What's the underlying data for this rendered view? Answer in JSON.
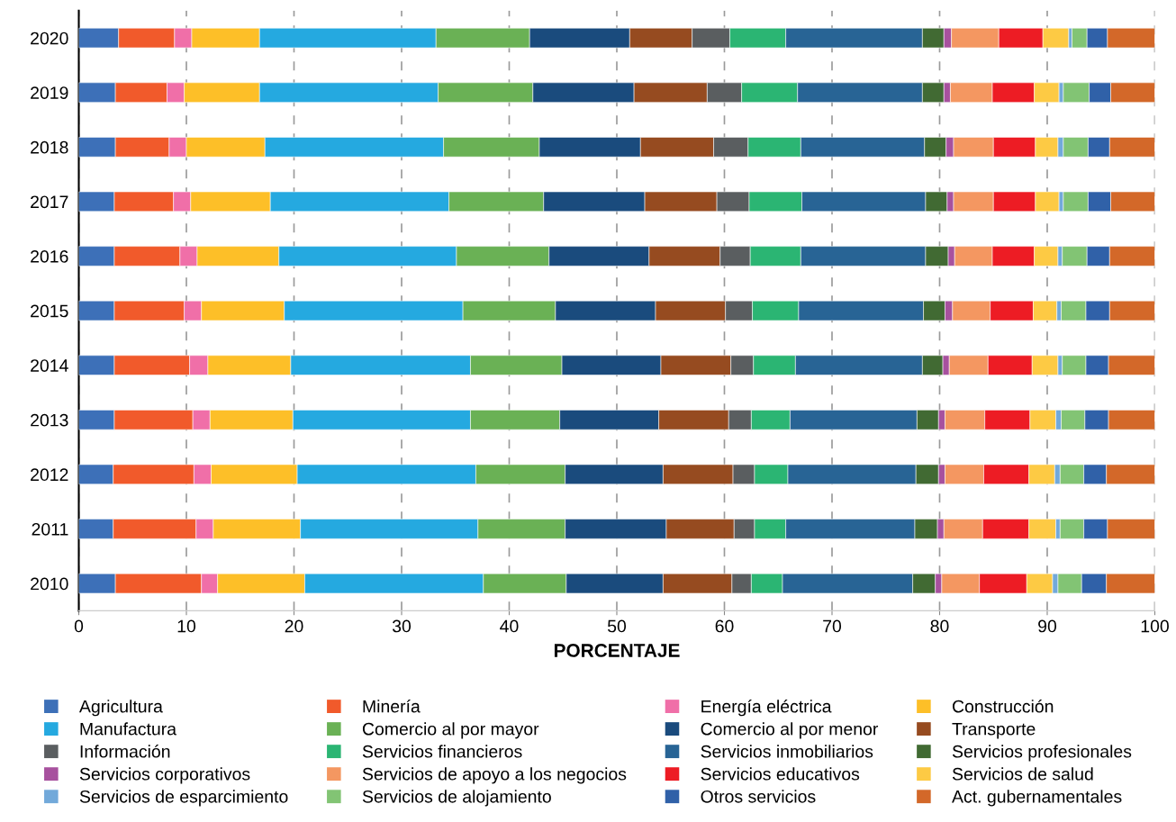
{
  "chart_data": {
    "type": "bar",
    "orientation": "horizontal",
    "stacked": true,
    "xlabel": "PORCENTAJE",
    "categories": [
      "2020",
      "2019",
      "2018",
      "2017",
      "2016",
      "2015",
      "2014",
      "2013",
      "2012",
      "2011",
      "2010"
    ],
    "xlim": [
      0,
      100
    ],
    "xticks": [
      0,
      10,
      20,
      30,
      40,
      50,
      60,
      70,
      80,
      90,
      100
    ],
    "grid": "x",
    "legend": "bottom",
    "series": [
      {
        "name": "Agricultura",
        "color": "#3d70b8",
        "values": [
          3.7,
          3.4,
          3.4,
          3.3,
          3.3,
          3.3,
          3.3,
          3.3,
          3.2,
          3.2,
          3.4
        ]
      },
      {
        "name": "Minería",
        "color": "#f15a2b",
        "values": [
          5.2,
          4.8,
          5.0,
          5.5,
          6.1,
          6.5,
          7.0,
          7.3,
          7.5,
          7.7,
          8.0
        ]
      },
      {
        "name": "Energía eléctrica",
        "color": "#f06fa8",
        "values": [
          1.6,
          1.6,
          1.6,
          1.6,
          1.6,
          1.6,
          1.7,
          1.6,
          1.6,
          1.6,
          1.5
        ]
      },
      {
        "name": "Construcción",
        "color": "#fdbf28",
        "values": [
          6.3,
          7.0,
          7.3,
          7.4,
          7.6,
          7.7,
          7.7,
          7.7,
          8.0,
          8.1,
          8.1
        ]
      },
      {
        "name": "Manufactura",
        "color": "#25a9e0",
        "values": [
          16.4,
          16.6,
          16.6,
          16.6,
          16.5,
          16.6,
          16.7,
          16.5,
          16.6,
          16.5,
          16.6
        ]
      },
      {
        "name": "Comercio al por mayor",
        "color": "#6ab155",
        "values": [
          8.7,
          8.8,
          8.9,
          8.8,
          8.6,
          8.6,
          8.5,
          8.3,
          8.3,
          8.1,
          7.7
        ]
      },
      {
        "name": "Comercio al por menor",
        "color": "#1a4b7d",
        "values": [
          9.3,
          9.4,
          9.4,
          9.4,
          9.3,
          9.3,
          9.2,
          9.2,
          9.1,
          9.4,
          9.0
        ]
      },
      {
        "name": "Transporte",
        "color": "#964b20",
        "values": [
          5.8,
          6.8,
          6.8,
          6.7,
          6.6,
          6.5,
          6.5,
          6.5,
          6.5,
          6.3,
          6.4
        ]
      },
      {
        "name": "Información",
        "color": "#5a5e60",
        "values": [
          3.5,
          3.2,
          3.2,
          3.0,
          2.8,
          2.5,
          2.1,
          2.1,
          2.0,
          1.9,
          1.8
        ]
      },
      {
        "name": "Servicios financieros",
        "color": "#2bb573",
        "values": [
          5.2,
          5.2,
          4.9,
          4.9,
          4.7,
          4.3,
          3.9,
          3.6,
          3.1,
          2.9,
          2.9
        ]
      },
      {
        "name": "Servicios inmobiliarios",
        "color": "#286495",
        "values": [
          12.7,
          11.6,
          11.5,
          11.5,
          11.6,
          11.6,
          11.8,
          11.8,
          11.9,
          12.0,
          12.1
        ]
      },
      {
        "name": "Servicios profesionales",
        "color": "#416a33",
        "values": [
          2.0,
          2.0,
          2.0,
          2.0,
          2.1,
          2.0,
          1.9,
          2.0,
          2.1,
          2.1,
          2.1
        ]
      },
      {
        "name": "Servicios corporativos",
        "color": "#a7519e",
        "values": [
          0.7,
          0.6,
          0.7,
          0.6,
          0.6,
          0.7,
          0.6,
          0.6,
          0.6,
          0.6,
          0.6
        ]
      },
      {
        "name": "Servicios de apoyo a los negocios",
        "color": "#f49761",
        "values": [
          4.4,
          3.9,
          3.7,
          3.7,
          3.5,
          3.5,
          3.6,
          3.7,
          3.6,
          3.6,
          3.5
        ]
      },
      {
        "name": "Servicios educativos",
        "color": "#ed1c24",
        "values": [
          4.1,
          3.9,
          3.9,
          3.9,
          3.9,
          4.0,
          4.1,
          4.2,
          4.2,
          4.3,
          4.4
        ]
      },
      {
        "name": "Servicios de salud",
        "color": "#fdca44",
        "values": [
          2.4,
          2.3,
          2.1,
          2.2,
          2.2,
          2.2,
          2.4,
          2.4,
          2.4,
          2.5,
          2.4
        ]
      },
      {
        "name": "Servicios de esparcimiento",
        "color": "#72a9da",
        "values": [
          0.3,
          0.4,
          0.5,
          0.4,
          0.4,
          0.4,
          0.4,
          0.5,
          0.5,
          0.4,
          0.5
        ]
      },
      {
        "name": "Servicios de alojamiento",
        "color": "#82c474",
        "values": [
          1.4,
          2.4,
          2.3,
          2.3,
          2.3,
          2.3,
          2.2,
          2.2,
          2.2,
          2.2,
          2.2
        ]
      },
      {
        "name": "Otros servicios",
        "color": "#3061a8",
        "values": [
          1.9,
          2.0,
          2.0,
          2.1,
          2.1,
          2.2,
          2.1,
          2.2,
          2.1,
          2.2,
          2.3
        ]
      },
      {
        "name": "Act. gubernamentales",
        "color": "#d36829",
        "values": [
          4.4,
          4.1,
          4.2,
          4.1,
          4.2,
          4.2,
          4.3,
          4.3,
          4.5,
          4.4,
          4.5
        ]
      }
    ]
  }
}
